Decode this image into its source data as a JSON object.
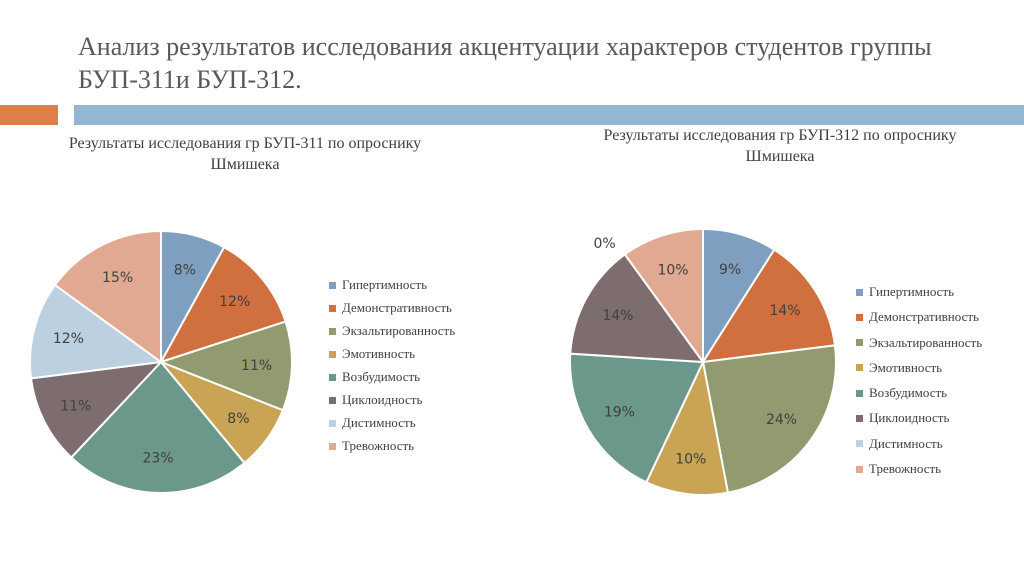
{
  "slide": {
    "title": "Анализ результатов исследования акцентуации характеров студентов группы БУП-311и БУП-312."
  },
  "colors": [
    "#7f9fc0",
    "#d0703f",
    "#919b6f",
    "#c9a455",
    "#6b988a",
    "#7e6d6e",
    "#bcd0df",
    "#e2a992"
  ],
  "chart_data": [
    {
      "type": "pie",
      "title": "Результаты исследования гр БУП-311 по опроснику Шмишека",
      "categories": [
        "Гипертимность",
        "Демонстративность",
        "Экзальтированность",
        "Эмотивность",
        "Возбудимость",
        "Циклоидность",
        "Дистимность",
        "Тревожность"
      ],
      "values": [
        8,
        12,
        11,
        8,
        23,
        11,
        12,
        15
      ],
      "labels": [
        "8%",
        "12%",
        "11%",
        "8%",
        "23%",
        "11%",
        "12%",
        "15%"
      ],
      "legend_position": "right"
    },
    {
      "type": "pie",
      "title": "Результаты исследования гр БУП-312 по опроснику Шмишека",
      "categories": [
        "Гипертимность",
        "Демонстративность",
        "Экзальтированность",
        "Эмотивность",
        "Возбудимость",
        "Циклоидность",
        "Дистимность",
        "Тревожность"
      ],
      "values": [
        9,
        14,
        24,
        10,
        19,
        14,
        0,
        10
      ],
      "labels": [
        "9%",
        "14%",
        "24%",
        "10%",
        "19%",
        "14%",
        "0%",
        "10%"
      ],
      "legend_position": "right"
    }
  ]
}
